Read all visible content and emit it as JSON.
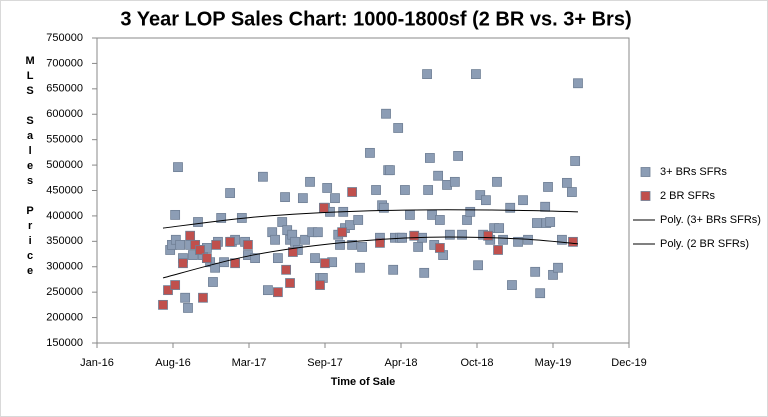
{
  "chart_data": {
    "type": "scatter",
    "title": "3 Year LOP Sales Chart: 1000-1800sf (2 BR vs. 3+ Brs)",
    "x_label": "Time of Sale",
    "y_label": "MLS Sales Price",
    "xlim": [
      42370,
      43861
    ],
    "xticks": [
      {
        "value": 42370,
        "label": "Jan-16"
      },
      {
        "value": 42583,
        "label": "Aug-16"
      },
      {
        "value": 42796,
        "label": "Mar-17"
      },
      {
        "value": 43009,
        "label": "Sep-17"
      },
      {
        "value": 43222,
        "label": "Apr-18"
      },
      {
        "value": 43435,
        "label": "Oct-18"
      },
      {
        "value": 43648,
        "label": "May-19"
      },
      {
        "value": 43861,
        "label": "Dec-19"
      }
    ],
    "ylim": [
      150000,
      750000
    ],
    "yticks": [
      150000,
      200000,
      250000,
      300000,
      350000,
      400000,
      450000,
      500000,
      550000,
      600000,
      650000,
      700000,
      750000
    ],
    "grid": false,
    "legend": "right",
    "series": [
      {
        "name": "3+ BRs SFRs",
        "color": "#8c9db5",
        "x": [
          42575,
          42580,
          42589,
          42597,
          42591,
          42603,
          42611,
          42617,
          42625,
          42631,
          42639,
          42653,
          42659,
          42667,
          42678,
          42687,
          42695,
          42701,
          42709,
          42718,
          42726,
          42743,
          42748,
          42757,
          42776,
          42785,
          42793,
          42813,
          42835,
          42849,
          42861,
          42869,
          42877,
          42889,
          42897,
          42903,
          42911,
          42917,
          42925,
          42933,
          42947,
          42953,
          42967,
          42973,
          42981,
          42989,
          42995,
          43003,
          43009,
          43015,
          43023,
          43029,
          43037,
          43046,
          43051,
          43060,
          43065,
          43079,
          43085,
          43102,
          43107,
          43113,
          43135,
          43152,
          43163,
          43169,
          43174,
          43180,
          43186,
          43191,
          43200,
          43205,
          43214,
          43219,
          43225,
          43233,
          43247,
          43270,
          43281,
          43287,
          43295,
          43298,
          43303,
          43309,
          43315,
          43326,
          43331,
          43340,
          43351,
          43359,
          43373,
          43382,
          43393,
          43407,
          43416,
          43432,
          43438,
          43444,
          43452,
          43460,
          43472,
          43483,
          43491,
          43497,
          43508,
          43528,
          43533,
          43550,
          43564,
          43578,
          43598,
          43603,
          43612,
          43626,
          43629,
          43634,
          43640,
          43648,
          43662,
          43673,
          43687,
          43701,
          43710,
          43718
        ],
        "values": [
          333000,
          343000,
          402000,
          496000,
          353000,
          343000,
          317000,
          239000,
          219000,
          343000,
          323000,
          388000,
          333000,
          323000,
          337000,
          309000,
          270000,
          298000,
          349000,
          396000,
          309000,
          445000,
          349000,
          353000,
          396000,
          349000,
          323000,
          317000,
          477000,
          254000,
          368000,
          353000,
          317000,
          388000,
          437000,
          372000,
          353000,
          363000,
          349000,
          333000,
          435000,
          353000,
          467000,
          368000,
          317000,
          368000,
          278000,
          278000,
          416000,
          455000,
          408000,
          309000,
          435000,
          363000,
          343000,
          408000,
          376000,
          382000,
          343000,
          392000,
          298000,
          339000,
          524000,
          451000,
          357000,
          421000,
          416000,
          601000,
          490000,
          490000,
          294000,
          357000,
          573000,
          357000,
          357000,
          451000,
          402000,
          339000,
          357000,
          288000,
          679000,
          451000,
          514000,
          402000,
          343000,
          479000,
          392000,
          323000,
          461000,
          363000,
          467000,
          518000,
          363000,
          392000,
          408000,
          679000,
          303000,
          441000,
          363000,
          431000,
          353000,
          376000,
          467000,
          376000,
          353000,
          416000,
          264000,
          349000,
          431000,
          353000,
          290000,
          386000,
          248000,
          418000,
          386000,
          457000,
          388000,
          284000,
          298000,
          353000,
          465000,
          447000,
          508000,
          661000
        ]
      },
      {
        "name": "2 BR SFRs",
        "color": "#c0504d",
        "x": [
          42555,
          42569,
          42589,
          42611,
          42631,
          42645,
          42659,
          42667,
          42678,
          42704,
          42743,
          42757,
          42793,
          42877,
          42900,
          42911,
          42919,
          42995,
          43006,
          43009,
          43057,
          43085,
          43163,
          43259,
          43331,
          43466,
          43494,
          43704
        ],
        "values": [
          225000,
          254000,
          264000,
          307000,
          361000,
          343000,
          333000,
          239000,
          317000,
          343000,
          349000,
          307000,
          343000,
          250000,
          294000,
          268000,
          329000,
          264000,
          416000,
          307000,
          368000,
          447000,
          347000,
          361000,
          337000,
          361000,
          333000,
          349000
        ]
      }
    ],
    "trendlines": [
      {
        "name": "Poly. (3+ BRs SFRs)",
        "color": "#000000",
        "x": [
          42555,
          42800,
          43050,
          43300,
          43550,
          43718
        ],
        "values": [
          376000,
          397000,
          408000,
          412000,
          411000,
          408000
        ]
      },
      {
        "name": "Poly. (2 BR SFRs)",
        "color": "#000000",
        "x": [
          42555,
          42800,
          43050,
          43300,
          43550,
          43718
        ],
        "values": [
          278000,
          322000,
          347000,
          358000,
          355000,
          345000
        ]
      }
    ]
  }
}
